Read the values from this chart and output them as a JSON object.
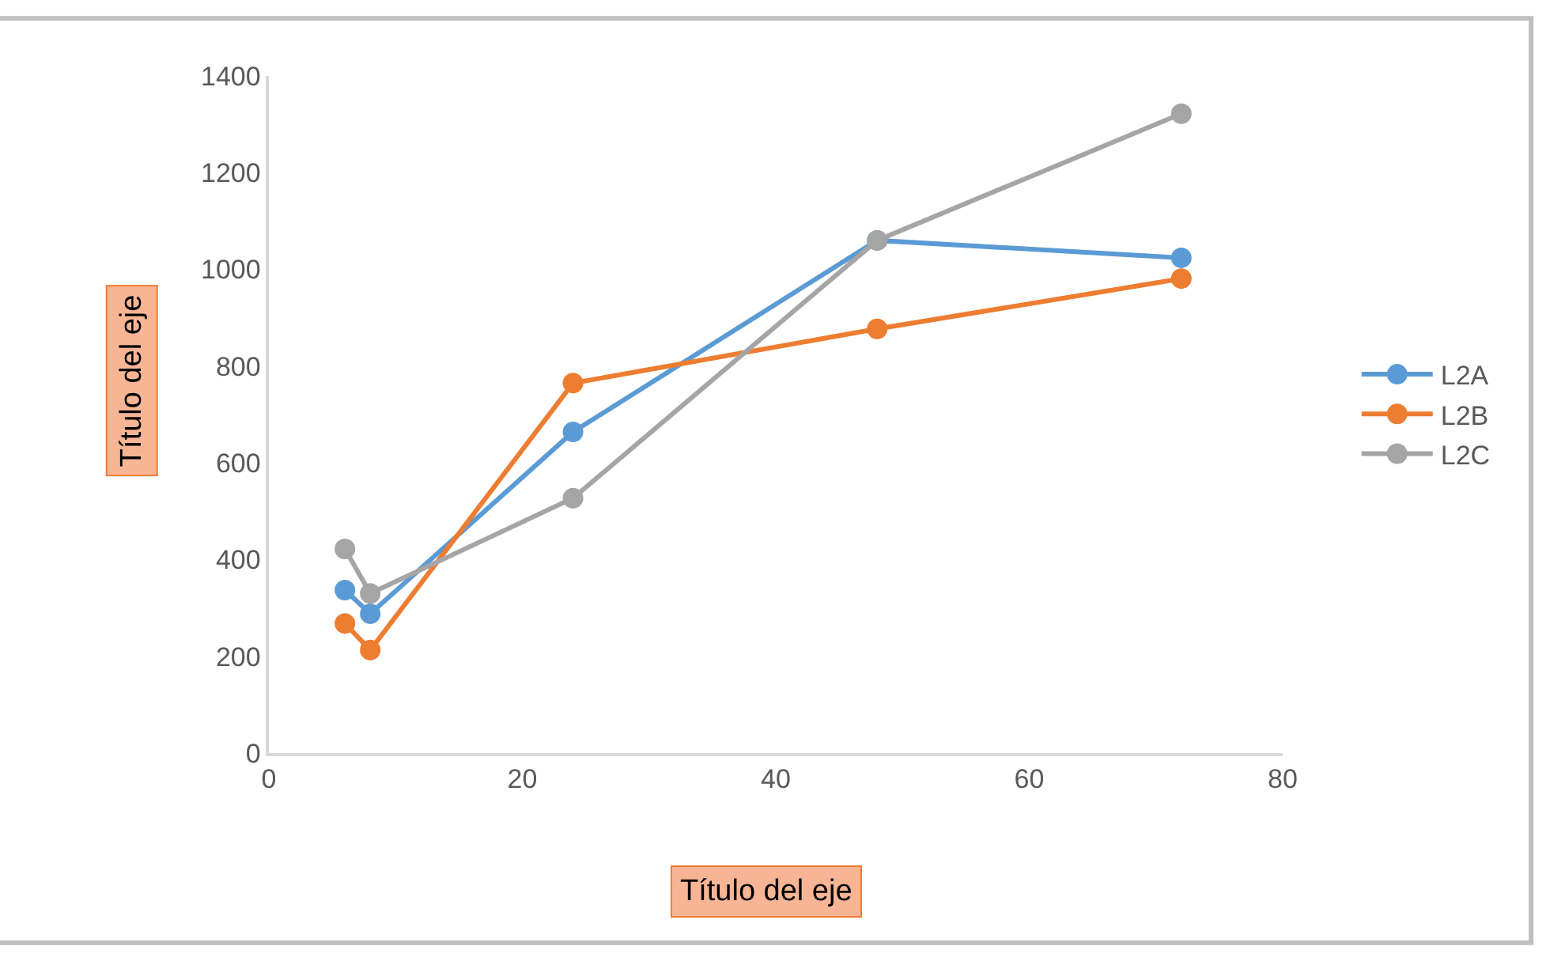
{
  "chart_data": {
    "type": "line",
    "xlabel": "Título del eje",
    "ylabel": "Título del eje",
    "x": [
      6,
      8,
      24,
      48,
      72
    ],
    "series": [
      {
        "name": "L2A",
        "color": "#5b9bd5",
        "values": [
          337,
          288,
          664,
          1060,
          1024
        ]
      },
      {
        "name": "L2B",
        "color": "#ed7d31",
        "values": [
          268,
          213,
          765,
          877,
          981
        ]
      },
      {
        "name": "L2C",
        "color": "#a5a5a5",
        "values": [
          422,
          330,
          527,
          1060,
          1322
        ]
      }
    ],
    "xlim": [
      0,
      80
    ],
    "xticks": [
      0,
      20,
      40,
      60,
      80
    ],
    "ylim": [
      0,
      1400
    ],
    "yticks": [
      0,
      200,
      400,
      600,
      800,
      1000,
      1200,
      1400
    ],
    "grid": false,
    "legend": "right",
    "marker": "circle",
    "line_style": "solid"
  }
}
